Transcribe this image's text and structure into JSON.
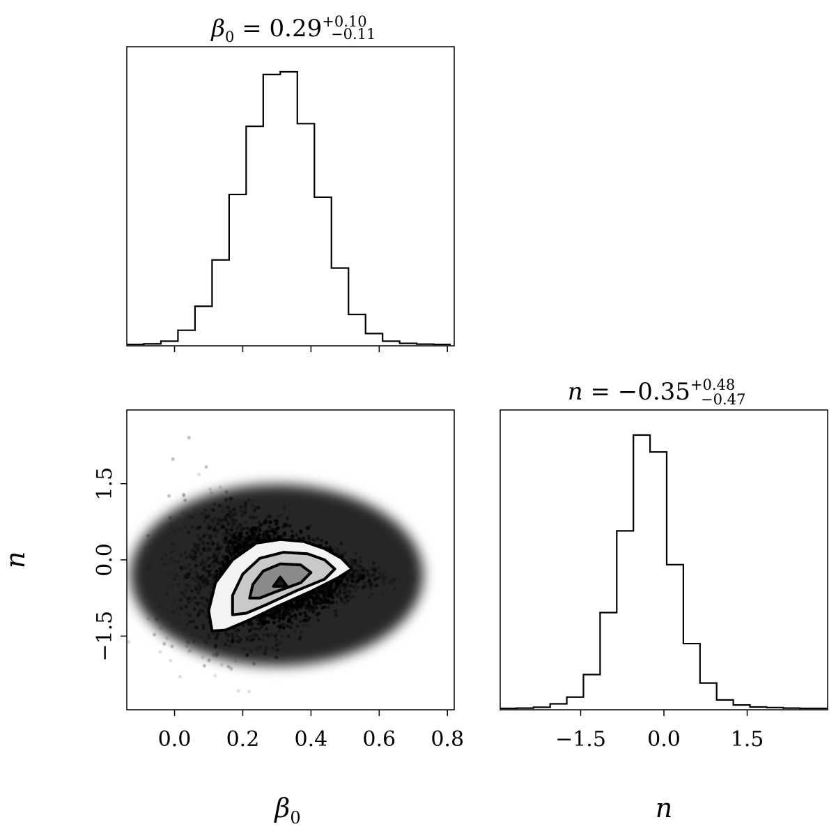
{
  "chart_data": [
    {
      "type": "histogram",
      "panel": "beta0-marginal",
      "title": {
        "symbol": "β",
        "subscript": "0",
        "equals": " = ",
        "value": "0.29",
        "upper": "+0.10",
        "lower": "−0.11"
      },
      "bin_edges": [
        -0.14,
        -0.09,
        -0.04,
        0.01,
        0.06,
        0.11,
        0.16,
        0.21,
        0.26,
        0.31,
        0.36,
        0.41,
        0.46,
        0.51,
        0.56,
        0.61,
        0.66,
        0.71,
        0.76,
        0.81
      ],
      "counts": [
        0,
        0.002,
        0.012,
        0.052,
        0.14,
        0.31,
        0.55,
        0.8,
        0.99,
        1.0,
        0.81,
        0.54,
        0.28,
        0.11,
        0.04,
        0.012,
        0.004,
        0.001,
        0
      ],
      "xlim": [
        -0.14,
        0.82
      ],
      "xticks": [
        0.0,
        0.2,
        0.4,
        0.6,
        0.8
      ],
      "xtick_labels_shown": false
    },
    {
      "type": "scatter-density",
      "panel": "beta0-vs-n",
      "xlim": [
        -0.14,
        0.82
      ],
      "ylim": [
        -2.95,
        2.95
      ],
      "xticks": [
        0.0,
        0.2,
        0.4,
        0.6,
        0.8
      ],
      "xtick_labels": [
        "0.0",
        "0.2",
        "0.4",
        "0.6",
        "0.8"
      ],
      "yticks": [
        -1.5,
        0.0,
        1.5
      ],
      "ytick_labels": [
        "−1.5",
        "0.0",
        "1.5"
      ],
      "xlabel": {
        "symbol": "β",
        "subscript": "0"
      },
      "ylabel": "n",
      "contour_levels": [
        {
          "level": "outer",
          "points": [
            [
              0.11,
              -1.4
            ],
            [
              0.1,
              -1.0
            ],
            [
              0.12,
              -0.45
            ],
            [
              0.17,
              0.0
            ],
            [
              0.24,
              0.33
            ],
            [
              0.31,
              0.4
            ],
            [
              0.38,
              0.36
            ],
            [
              0.44,
              0.22
            ],
            [
              0.49,
              0.03
            ],
            [
              0.52,
              -0.18
            ],
            [
              0.48,
              -0.35
            ],
            [
              0.4,
              -0.62
            ],
            [
              0.3,
              -0.92
            ],
            [
              0.22,
              -1.18
            ],
            [
              0.15,
              -1.38
            ]
          ]
        },
        {
          "level": "middle",
          "points": [
            [
              0.17,
              -1.08
            ],
            [
              0.17,
              -0.7
            ],
            [
              0.2,
              -0.28
            ],
            [
              0.25,
              0.03
            ],
            [
              0.32,
              0.15
            ],
            [
              0.39,
              0.12
            ],
            [
              0.44,
              0.0
            ],
            [
              0.47,
              -0.18
            ],
            [
              0.44,
              -0.38
            ],
            [
              0.36,
              -0.6
            ],
            [
              0.27,
              -0.88
            ],
            [
              0.21,
              -1.05
            ]
          ]
        },
        {
          "level": "inner",
          "points": [
            [
              0.22,
              -0.75
            ],
            [
              0.23,
              -0.48
            ],
            [
              0.26,
              -0.22
            ],
            [
              0.31,
              -0.08
            ],
            [
              0.37,
              -0.1
            ],
            [
              0.4,
              -0.25
            ],
            [
              0.37,
              -0.45
            ],
            [
              0.3,
              -0.62
            ],
            [
              0.25,
              -0.75
            ]
          ]
        },
        {
          "level": "core",
          "points": [
            [
              0.29,
              -0.52
            ],
            [
              0.31,
              -0.34
            ],
            [
              0.33,
              -0.52
            ]
          ]
        }
      ]
    },
    {
      "type": "histogram",
      "panel": "n-marginal",
      "title": {
        "symbol": "n",
        "equals": " = ",
        "value": "−0.35",
        "upper": "+0.48",
        "lower": "−0.47"
      },
      "bin_edges": [
        -2.95,
        -2.65,
        -2.35,
        -2.05,
        -1.75,
        -1.45,
        -1.15,
        -0.85,
        -0.55,
        -0.25,
        0.05,
        0.35,
        0.65,
        0.95,
        1.25,
        1.55,
        1.85,
        2.15,
        2.45,
        2.95
      ],
      "counts": [
        0,
        0.001,
        0.004,
        0.016,
        0.04,
        0.12,
        0.34,
        0.63,
        0.97,
        0.91,
        0.51,
        0.23,
        0.09,
        0.03,
        0.012,
        0.005,
        0.003,
        0.001,
        0
      ],
      "xlim": [
        -2.95,
        2.95
      ],
      "xticks": [
        -1.5,
        0.0,
        1.5
      ],
      "xtick_labels": [
        "−1.5",
        "0.0",
        "1.5"
      ],
      "xlabel": "n"
    }
  ]
}
